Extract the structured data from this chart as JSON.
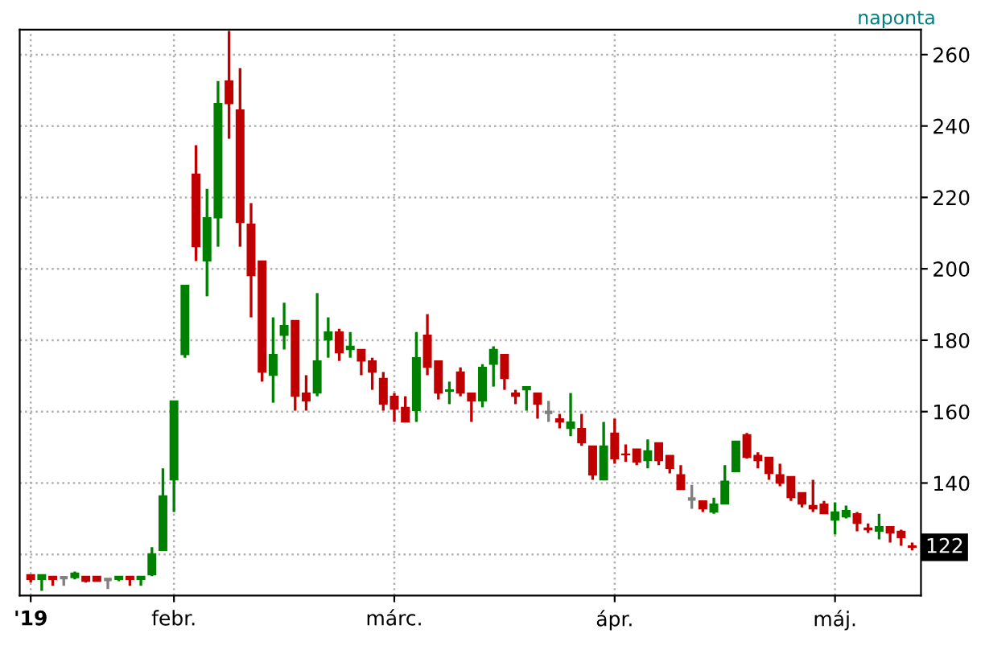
{
  "chart_data": {
    "type": "candlestick",
    "subtitle": "naponta",
    "categories": [
      "'19",
      null,
      null,
      null,
      null,
      null,
      null,
      null,
      null,
      null,
      null,
      null,
      null,
      "febr.",
      null,
      null,
      null,
      null,
      null,
      null,
      null,
      null,
      null,
      null,
      null,
      null,
      null,
      null,
      null,
      null,
      null,
      null,
      null,
      "márc.",
      null,
      null,
      null,
      null,
      null,
      null,
      null,
      null,
      null,
      null,
      null,
      null,
      null,
      null,
      null,
      null,
      null,
      null,
      null,
      "ápr.",
      null,
      null,
      null,
      null,
      null,
      null,
      null,
      null,
      null,
      null,
      null,
      null,
      null,
      null,
      null,
      null,
      null,
      null,
      null,
      "máj.",
      null,
      null,
      null,
      null,
      null,
      null,
      null
    ],
    "ohlc": [
      [
        114.3,
        114.3,
        112.1,
        113.0
      ],
      [
        113.0,
        114.3,
        109.8,
        114.3
      ],
      [
        113.9,
        113.9,
        111.2,
        113.0
      ],
      [
        113.5,
        113.5,
        111.2,
        113.5
      ],
      [
        113.5,
        115.2,
        113.0,
        114.8
      ],
      [
        113.9,
        113.9,
        112.1,
        112.5
      ],
      [
        113.9,
        113.9,
        112.5,
        112.5
      ],
      [
        113.0,
        113.0,
        110.3,
        113.0
      ],
      [
        113.0,
        113.9,
        112.5,
        113.9
      ],
      [
        113.9,
        113.9,
        111.2,
        113.0
      ],
      [
        113.0,
        113.9,
        111.2,
        113.9
      ],
      [
        114.3,
        122.0,
        113.9,
        120.2
      ],
      [
        121.1,
        144.1,
        121.1,
        136.4
      ],
      [
        140.9,
        163.0,
        131.9,
        163.0
      ],
      [
        176.0,
        195.4,
        175.1,
        195.4
      ],
      [
        226.5,
        234.6,
        202.2,
        206.2
      ],
      [
        202.2,
        222.4,
        192.3,
        214.3
      ],
      [
        214.3,
        252.6,
        206.2,
        246.3
      ],
      [
        252.6,
        266.6,
        236.4,
        246.3
      ],
      [
        244.5,
        256.2,
        206.2,
        213.0
      ],
      [
        212.5,
        218.4,
        186.4,
        198.1
      ],
      [
        202.2,
        202.2,
        168.4,
        171.1
      ],
      [
        170.2,
        186.4,
        162.5,
        176.0
      ],
      [
        181.4,
        190.5,
        177.4,
        184.1
      ],
      [
        185.5,
        185.5,
        160.3,
        164.3
      ],
      [
        165.2,
        170.2,
        160.3,
        163.0
      ],
      [
        165.2,
        193.2,
        164.3,
        174.2
      ],
      [
        180.1,
        186.4,
        175.1,
        182.3
      ],
      [
        182.3,
        183.2,
        174.2,
        176.5
      ],
      [
        177.4,
        182.3,
        175.1,
        178.3
      ],
      [
        177.4,
        177.4,
        170.2,
        174.2
      ],
      [
        174.2,
        175.1,
        166.1,
        171.1
      ],
      [
        169.3,
        171.1,
        160.3,
        162.1
      ],
      [
        164.3,
        165.2,
        157.1,
        160.7
      ],
      [
        161.2,
        164.3,
        157.1,
        157.1
      ],
      [
        160.3,
        182.3,
        157.1,
        175.1
      ],
      [
        181.4,
        187.3,
        170.2,
        172.4
      ],
      [
        174.2,
        174.2,
        163.4,
        165.2
      ],
      [
        165.7,
        168.4,
        162.1,
        166.1
      ],
      [
        171.1,
        172.4,
        164.3,
        165.2
      ],
      [
        165.2,
        165.2,
        157.1,
        163.0
      ],
      [
        163.0,
        173.3,
        161.2,
        172.4
      ],
      [
        173.3,
        178.3,
        167.0,
        177.4
      ],
      [
        176.0,
        176.0,
        166.1,
        169.3
      ],
      [
        165.2,
        166.1,
        162.1,
        164.3
      ],
      [
        166.1,
        167.0,
        160.3,
        167.0
      ],
      [
        165.2,
        165.2,
        158.0,
        162.1
      ],
      [
        159.8,
        163.0,
        157.1,
        159.8
      ],
      [
        158.0,
        159.4,
        155.3,
        157.1
      ],
      [
        155.3,
        165.2,
        153.1,
        157.1
      ],
      [
        155.3,
        159.4,
        150.4,
        151.3
      ],
      [
        150.4,
        150.4,
        140.9,
        142.3
      ],
      [
        140.9,
        157.1,
        140.9,
        150.4
      ],
      [
        154.0,
        158.0,
        145.4,
        146.8
      ],
      [
        148.1,
        150.8,
        145.9,
        147.9
      ],
      [
        149.5,
        149.5,
        145.0,
        145.9
      ],
      [
        146.3,
        152.2,
        144.1,
        149.0
      ],
      [
        151.3,
        151.3,
        145.0,
        146.3
      ],
      [
        147.7,
        147.7,
        142.7,
        144.1
      ],
      [
        142.3,
        145.0,
        138.2,
        138.2
      ],
      [
        135.5,
        139.5,
        132.8,
        135.5
      ],
      [
        135.0,
        135.0,
        131.9,
        132.8
      ],
      [
        131.9,
        135.9,
        131.4,
        134.1
      ],
      [
        134.1,
        145.0,
        134.1,
        140.5
      ],
      [
        143.2,
        151.7,
        143.2,
        151.7
      ],
      [
        153.5,
        154.0,
        146.8,
        147.2
      ],
      [
        147.7,
        148.6,
        144.1,
        146.3
      ],
      [
        147.2,
        147.2,
        140.9,
        142.7
      ],
      [
        142.3,
        145.4,
        139.1,
        140.0
      ],
      [
        141.8,
        141.8,
        135.0,
        135.9
      ],
      [
        137.3,
        137.3,
        133.2,
        134.1
      ],
      [
        133.7,
        140.9,
        131.9,
        132.8
      ],
      [
        134.1,
        135.0,
        131.4,
        131.4
      ],
      [
        129.6,
        134.6,
        125.6,
        131.9
      ],
      [
        130.5,
        133.7,
        130.1,
        132.3
      ],
      [
        131.4,
        131.9,
        126.5,
        128.7
      ],
      [
        127.4,
        128.7,
        126.0,
        126.9
      ],
      [
        126.5,
        131.4,
        124.2,
        127.8
      ],
      [
        127.8,
        127.8,
        123.3,
        126.0
      ],
      [
        126.5,
        126.9,
        122.4,
        124.7
      ],
      [
        122.4,
        123.3,
        121.1,
        122.0
      ]
    ],
    "colors": [
      "#c00000",
      "#008000",
      "#c00000",
      "#808080",
      "#008000",
      "#c00000",
      "#c00000",
      "#808080",
      "#008000",
      "#c00000",
      "#008000",
      "#008000",
      "#008000",
      "#008000",
      "#008000",
      "#c00000",
      "#008000",
      "#008000",
      "#c00000",
      "#c00000",
      "#c00000",
      "#c00000",
      "#008000",
      "#008000",
      "#c00000",
      "#c00000",
      "#008000",
      "#008000",
      "#c00000",
      "#008000",
      "#c00000",
      "#c00000",
      "#c00000",
      "#c00000",
      "#c00000",
      "#008000",
      "#c00000",
      "#c00000",
      "#008000",
      "#c00000",
      "#c00000",
      "#008000",
      "#008000",
      "#c00000",
      "#c00000",
      "#008000",
      "#c00000",
      "#808080",
      "#c00000",
      "#008000",
      "#c00000",
      "#c00000",
      "#008000",
      "#c00000",
      "#c00000",
      "#c00000",
      "#008000",
      "#c00000",
      "#c00000",
      "#c00000",
      "#808080",
      "#c00000",
      "#008000",
      "#008000",
      "#008000",
      "#c00000",
      "#c00000",
      "#c00000",
      "#c00000",
      "#c00000",
      "#c00000",
      "#c00000",
      "#c00000",
      "#008000",
      "#008000",
      "#c00000",
      "#c00000",
      "#008000",
      "#c00000",
      "#c00000",
      "#c00000"
    ],
    "ylim": [
      108.5,
      267
    ],
    "yticks": [
      {
        "value": 120,
        "label": null
      },
      140,
      160,
      180,
      200,
      220,
      240,
      260
    ],
    "grid": true,
    "annotations": [
      {
        "text": "122",
        "y": 122
      }
    ]
  }
}
